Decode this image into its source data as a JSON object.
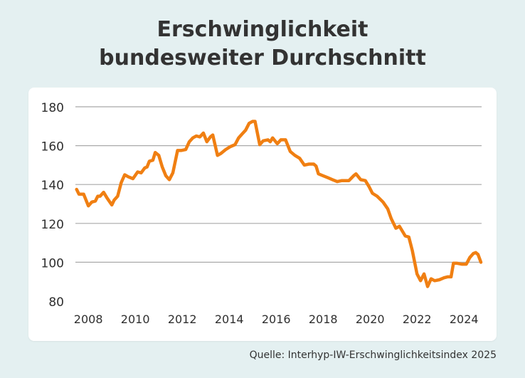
{
  "header": {
    "title_line1": "Erschwinglichkeit",
    "title_line2": "bundesweiter Durchschnitt"
  },
  "source": "Quelle: Interhyp-IW-Erschwinglichkeitsindex 2025",
  "colors": {
    "line": "#f07f12",
    "grid": "#a9a9a9",
    "background": "#e4f0f1",
    "card": "#ffffff"
  },
  "chart_data": {
    "type": "line",
    "title": "Erschwinglichkeit bundesweiter Durchschnitt",
    "xlabel": "",
    "ylabel": "",
    "ylim": [
      80,
      180
    ],
    "xlim": [
      2007.45,
      2024.75
    ],
    "grid": true,
    "y_ticks": [
      80,
      100,
      120,
      140,
      160,
      180
    ],
    "x_ticks": [
      2008,
      2010,
      2012,
      2014,
      2016,
      2018,
      2020,
      2022,
      2024
    ],
    "series": [
      {
        "points": [
          [
            2007.5,
            137.5
          ],
          [
            2007.6,
            135
          ],
          [
            2007.8,
            135
          ],
          [
            2008.0,
            129
          ],
          [
            2008.15,
            131
          ],
          [
            2008.3,
            131.5
          ],
          [
            2008.4,
            134
          ],
          [
            2008.5,
            134
          ],
          [
            2008.65,
            136
          ],
          [
            2008.8,
            133
          ],
          [
            2009.0,
            129.5
          ],
          [
            2009.1,
            132
          ],
          [
            2009.25,
            134
          ],
          [
            2009.4,
            141
          ],
          [
            2009.55,
            145
          ],
          [
            2009.7,
            144
          ],
          [
            2009.9,
            143
          ],
          [
            2010.1,
            146.5
          ],
          [
            2010.25,
            146
          ],
          [
            2010.4,
            148.5
          ],
          [
            2010.5,
            149
          ],
          [
            2010.6,
            152
          ],
          [
            2010.75,
            152.5
          ],
          [
            2010.85,
            156.5
          ],
          [
            2011.0,
            155
          ],
          [
            2011.15,
            149
          ],
          [
            2011.3,
            144.5
          ],
          [
            2011.45,
            142.5
          ],
          [
            2011.6,
            146
          ],
          [
            2011.8,
            157.5
          ],
          [
            2011.95,
            157.5
          ],
          [
            2012.15,
            158
          ],
          [
            2012.3,
            162
          ],
          [
            2012.45,
            164
          ],
          [
            2012.6,
            165
          ],
          [
            2012.75,
            164.5
          ],
          [
            2012.9,
            166.5
          ],
          [
            2013.05,
            162
          ],
          [
            2013.2,
            164.5
          ],
          [
            2013.3,
            165.5
          ],
          [
            2013.5,
            155
          ],
          [
            2013.65,
            156
          ],
          [
            2013.85,
            158
          ],
          [
            2014.05,
            159.5
          ],
          [
            2014.25,
            160.5
          ],
          [
            2014.4,
            164
          ],
          [
            2014.55,
            166
          ],
          [
            2014.7,
            168
          ],
          [
            2014.85,
            171.5
          ],
          [
            2015.0,
            172.5
          ],
          [
            2015.1,
            172.5
          ],
          [
            2015.3,
            160.5
          ],
          [
            2015.45,
            162.5
          ],
          [
            2015.65,
            163
          ],
          [
            2015.75,
            162
          ],
          [
            2015.85,
            164
          ],
          [
            2016.05,
            161
          ],
          [
            2016.2,
            163
          ],
          [
            2016.4,
            163
          ],
          [
            2016.6,
            157
          ],
          [
            2016.8,
            155
          ],
          [
            2017.0,
            153.5
          ],
          [
            2017.2,
            150
          ],
          [
            2017.4,
            150.5
          ],
          [
            2017.6,
            150.5
          ],
          [
            2017.7,
            149.5
          ],
          [
            2017.8,
            145.5
          ],
          [
            2018.0,
            144.5
          ],
          [
            2018.2,
            143.5
          ],
          [
            2018.4,
            142.5
          ],
          [
            2018.6,
            141.5
          ],
          [
            2018.8,
            142
          ],
          [
            2019.0,
            142
          ],
          [
            2019.1,
            142
          ],
          [
            2019.3,
            144.5
          ],
          [
            2019.4,
            145.5
          ],
          [
            2019.6,
            142.5
          ],
          [
            2019.8,
            142
          ],
          [
            2019.95,
            139
          ],
          [
            2020.1,
            135.5
          ],
          [
            2020.3,
            134
          ],
          [
            2020.55,
            131
          ],
          [
            2020.75,
            127.5
          ],
          [
            2020.9,
            122.5
          ],
          [
            2021.1,
            117.5
          ],
          [
            2021.25,
            118.5
          ],
          [
            2021.5,
            113.5
          ],
          [
            2021.65,
            113
          ],
          [
            2021.8,
            106
          ],
          [
            2022.0,
            94
          ],
          [
            2022.15,
            90.5
          ],
          [
            2022.3,
            94
          ],
          [
            2022.45,
            87.5
          ],
          [
            2022.6,
            91.5
          ],
          [
            2022.75,
            90.5
          ],
          [
            2022.95,
            91
          ],
          [
            2023.15,
            92
          ],
          [
            2023.3,
            92.5
          ],
          [
            2023.45,
            92.5
          ],
          [
            2023.55,
            99.5
          ],
          [
            2023.7,
            99.5
          ],
          [
            2023.9,
            99
          ],
          [
            2024.1,
            99
          ],
          [
            2024.25,
            102.5
          ],
          [
            2024.4,
            104.5
          ],
          [
            2024.5,
            105
          ],
          [
            2024.6,
            104
          ],
          [
            2024.72,
            100
          ]
        ]
      }
    ]
  }
}
